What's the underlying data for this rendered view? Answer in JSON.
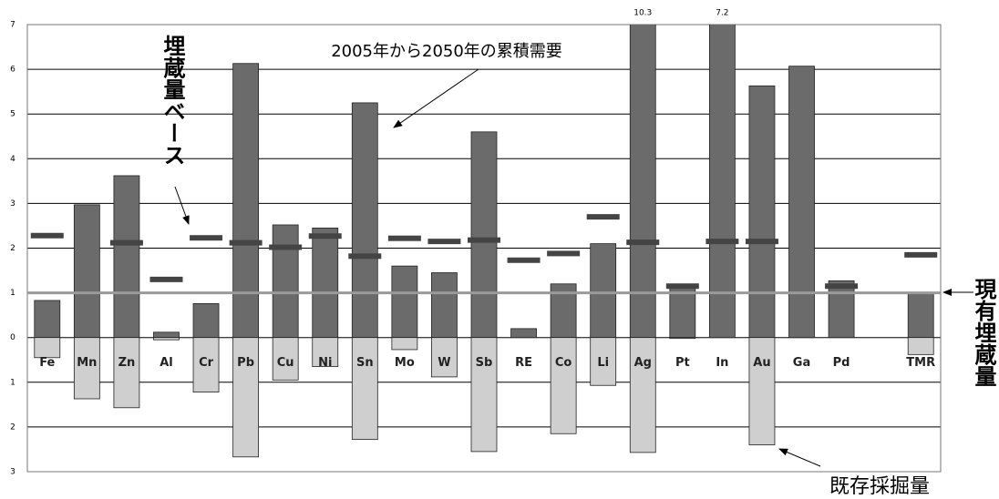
{
  "chart_data": {
    "type": "bar",
    "categories": [
      "Fe",
      "Mn",
      "Zn",
      "Al",
      "Cr",
      "Pb",
      "Cu",
      "Ni",
      "Sn",
      "Mo",
      "W",
      "Sb",
      "RE",
      "Co",
      "Li",
      "Ag",
      "Pt",
      "In",
      "Au",
      "Ga",
      "Pd",
      null,
      "TMR"
    ],
    "series": [
      {
        "name": "2005年から2050年の累積需要",
        "color": "#6b6b6b",
        "kind": "bar",
        "values": [
          0.83,
          2.97,
          3.62,
          0.12,
          0.76,
          6.13,
          2.52,
          2.45,
          5.25,
          1.6,
          1.45,
          4.6,
          0.2,
          1.2,
          2.1,
          10.3,
          1.15,
          7.2,
          5.63,
          6.07,
          1.27,
          null,
          1.0
        ],
        "value_labels": [
          null,
          null,
          null,
          null,
          null,
          null,
          null,
          null,
          null,
          null,
          null,
          null,
          null,
          null,
          null,
          "10.3",
          null,
          "7.2",
          null,
          null,
          null,
          null,
          null
        ]
      },
      {
        "name": "既存採掘量",
        "color": "#cfcfcf",
        "kind": "bar",
        "values": [
          -0.45,
          -1.37,
          -1.57,
          -0.05,
          -1.22,
          -2.67,
          -0.95,
          -0.65,
          -2.28,
          -0.27,
          -0.88,
          -2.55,
          null,
          -2.15,
          -1.07,
          -2.57,
          -0.02,
          null,
          -2.4,
          null,
          null,
          null,
          -0.38
        ]
      },
      {
        "name": "埋蔵量ベース",
        "color": "#444444",
        "kind": "marker",
        "values": [
          2.28,
          null,
          2.12,
          1.3,
          2.23,
          2.12,
          2.02,
          2.27,
          1.82,
          2.22,
          2.15,
          2.18,
          1.73,
          1.88,
          2.7,
          2.13,
          1.15,
          2.15,
          2.15,
          null,
          1.15,
          null,
          1.85
        ]
      }
    ],
    "hline": {
      "value": 1,
      "label": "現有埋蔵量",
      "color": "#9a9a9a"
    },
    "ylim": [
      -3,
      7
    ],
    "yticks": [
      7,
      6,
      5,
      4,
      3,
      2,
      1,
      0,
      {
        "value": -1,
        "label": "1"
      },
      {
        "value": -2,
        "label": "2"
      },
      {
        "value": -3,
        "label": "3"
      }
    ],
    "grid": true
  }
}
